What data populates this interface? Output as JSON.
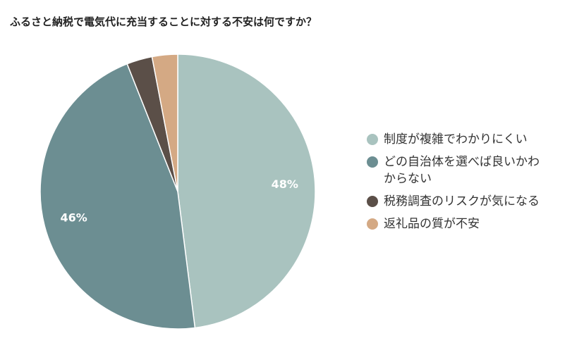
{
  "chart_data": {
    "type": "pie",
    "title": "ふるさと納税で電気代に充当することに対する不安は何ですか？",
    "categories": [
      "制度が複雑でわかりにくい",
      "どの自治体を選べば良いかわからない",
      "税務調査のリスクが気になる",
      "返礼品の質が不安"
    ],
    "values": [
      48,
      46,
      3,
      3
    ],
    "value_labels": [
      "48%",
      "46%",
      null,
      null
    ],
    "colors": [
      "#a9c3bf",
      "#6c8e92",
      "#5b4f48",
      "#d4a984"
    ],
    "legend": "right"
  }
}
